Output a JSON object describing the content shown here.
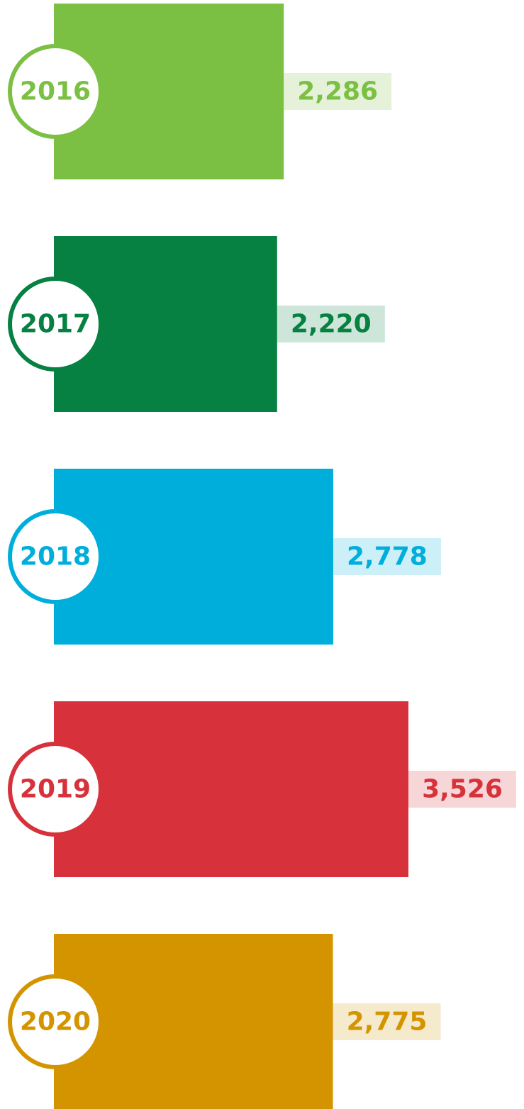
{
  "chart_data": {
    "type": "bar",
    "orientation": "horizontal",
    "categories": [
      "2016",
      "2017",
      "2018",
      "2019",
      "2020"
    ],
    "values": [
      2286,
      2220,
      2778,
      3526,
      2775
    ],
    "value_labels": [
      "2,286",
      "2,220",
      "2,778",
      "3,526",
      "2,775"
    ],
    "colors": [
      "#7bc043",
      "#068141",
      "#00aedb",
      "#d7323b",
      "#d39400"
    ]
  }
}
